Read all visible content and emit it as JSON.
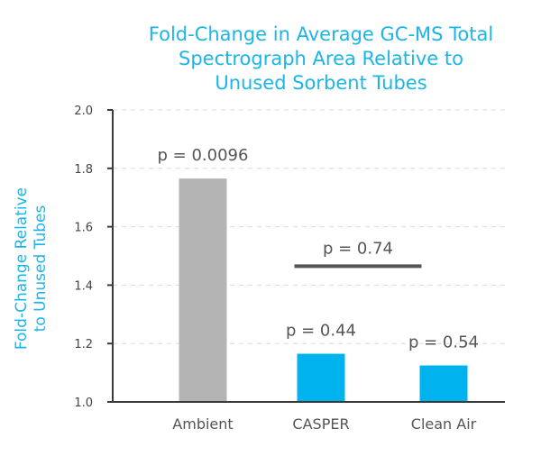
{
  "chart_data": {
    "type": "bar",
    "title_lines": [
      "Fold-Change in Average GC-MS Total",
      "Spectrograph Area Relative to",
      "Unused Sorbent Tubes"
    ],
    "ylabel_lines": [
      "Fold-Change Relative",
      "to Unused Tubes"
    ],
    "xlabel": "",
    "categories": [
      "Ambient",
      "CASPER",
      "Clean Air"
    ],
    "values": [
      1.765,
      1.165,
      1.125
    ],
    "bar_colors": [
      "#b3b4b3",
      "#00b3ef",
      "#00b3ef"
    ],
    "ylim": [
      1.0,
      2.0
    ],
    "yticks": [
      "1.0",
      "1.2",
      "1.4",
      "1.6",
      "1.8",
      "2.0"
    ],
    "ytick_values": [
      1.0,
      1.2,
      1.4,
      1.6,
      1.8,
      2.0
    ],
    "bar_labels": [
      "p = 0.0096",
      "p = 0.44",
      "p = 0.54"
    ],
    "comparison": {
      "label": "p = 0.74",
      "from": "CASPER",
      "to": "Clean Air",
      "y": 1.465
    },
    "grid": "horizontal dashed",
    "axis_color": "#3a3a3a",
    "comparison_color": "#555555"
  }
}
